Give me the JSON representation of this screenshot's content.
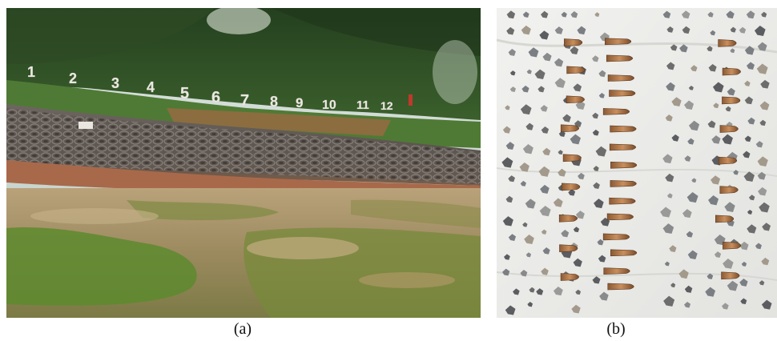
{
  "figure": {
    "panels": [
      {
        "label": "(a)",
        "image": "shooting-range-berm",
        "target_numbers": [
          "1",
          "2",
          "3",
          "4",
          "5",
          "6",
          "7",
          "8",
          "9",
          "10",
          "11",
          "12"
        ]
      },
      {
        "label": "(b)",
        "image": "recovered-bullet-fragments"
      }
    ]
  }
}
